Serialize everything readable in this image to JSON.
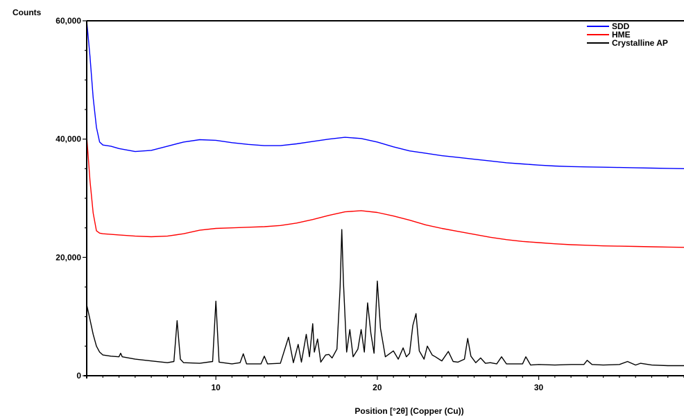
{
  "chart_data": {
    "type": "line",
    "title": "",
    "xlabel": "Position [°2θ] (Copper (Cu))",
    "ylabel": "Counts",
    "xlim": [
      2,
      39
    ],
    "ylim": [
      0,
      60000
    ],
    "x_ticks": [
      10,
      20,
      30
    ],
    "x_tick_labels": [
      "10",
      "20",
      "30"
    ],
    "y_ticks": [
      0,
      20000,
      40000,
      60000
    ],
    "y_tick_labels": [
      "0",
      "20,000",
      "40,000",
      "60,000"
    ],
    "grid": false,
    "legend_position": "top-right",
    "series": [
      {
        "name": "SDD",
        "color": "#0000ff",
        "x": [
          2.0,
          2.2,
          2.4,
          2.6,
          2.8,
          3.0,
          3.5,
          4.0,
          5.0,
          6.0,
          7.0,
          8.0,
          9.0,
          10.0,
          11.0,
          12.0,
          13.0,
          14.0,
          15.0,
          16.0,
          17.0,
          18.0,
          19.0,
          20.0,
          21.0,
          22.0,
          23.0,
          24.0,
          25.0,
          26.0,
          27.0,
          28.0,
          29.0,
          30.0,
          31.0,
          32.0,
          33.0,
          34.0,
          35.0,
          36.0,
          37.0,
          38.0,
          39.0
        ],
        "y": [
          60000,
          54000,
          47000,
          42000,
          39500,
          39000,
          38800,
          38400,
          37900,
          38100,
          38800,
          39500,
          39900,
          39800,
          39400,
          39100,
          38900,
          38900,
          39200,
          39600,
          40000,
          40300,
          40100,
          39500,
          38700,
          38000,
          37600,
          37200,
          36900,
          36600,
          36300,
          36000,
          35800,
          35600,
          35450,
          35350,
          35300,
          35250,
          35200,
          35150,
          35100,
          35050,
          35000
        ]
      },
      {
        "name": "HME",
        "color": "#ff0000",
        "x": [
          2.0,
          2.2,
          2.4,
          2.6,
          2.8,
          3.0,
          3.5,
          4.0,
          5.0,
          6.0,
          7.0,
          8.0,
          9.0,
          10.0,
          11.0,
          12.0,
          13.0,
          14.0,
          15.0,
          16.0,
          17.0,
          18.0,
          19.0,
          20.0,
          21.0,
          22.0,
          23.0,
          24.0,
          25.0,
          26.0,
          27.0,
          28.0,
          29.0,
          30.0,
          31.0,
          32.0,
          33.0,
          34.0,
          35.0,
          36.0,
          37.0,
          38.0,
          39.0
        ],
        "y": [
          40500,
          33000,
          27500,
          24500,
          24100,
          24000,
          23900,
          23800,
          23600,
          23500,
          23600,
          24000,
          24600,
          24900,
          25000,
          25100,
          25200,
          25400,
          25800,
          26400,
          27100,
          27700,
          27900,
          27600,
          27000,
          26300,
          25500,
          24900,
          24400,
          23900,
          23400,
          23000,
          22700,
          22500,
          22300,
          22150,
          22050,
          21950,
          21900,
          21850,
          21800,
          21750,
          21700
        ]
      },
      {
        "name": "Crystalline AP",
        "color": "#000000",
        "x": [
          2.0,
          2.2,
          2.4,
          2.6,
          2.8,
          3.0,
          3.5,
          4.0,
          4.1,
          4.2,
          5.0,
          6.0,
          7.0,
          7.4,
          7.6,
          7.8,
          8.0,
          9.0,
          9.8,
          10.0,
          10.2,
          11.0,
          11.5,
          11.7,
          11.9,
          12.8,
          13.0,
          13.2,
          14.0,
          14.5,
          14.8,
          15.1,
          15.3,
          15.6,
          15.8,
          16.0,
          16.1,
          16.3,
          16.5,
          16.8,
          17.0,
          17.2,
          17.5,
          17.7,
          17.8,
          17.9,
          18.1,
          18.3,
          18.5,
          18.8,
          19.0,
          19.2,
          19.4,
          19.6,
          19.8,
          20.0,
          20.2,
          20.5,
          21.0,
          21.3,
          21.6,
          21.8,
          22.0,
          22.2,
          22.4,
          22.6,
          22.9,
          23.1,
          23.4,
          23.6,
          24.0,
          24.4,
          24.7,
          25.0,
          25.4,
          25.6,
          25.8,
          26.1,
          26.4,
          26.7,
          27.0,
          27.4,
          27.7,
          28.0,
          29.0,
          29.2,
          29.5,
          30.0,
          31.0,
          32.0,
          32.8,
          33.0,
          33.3,
          34.0,
          35.0,
          35.5,
          36.0,
          36.3,
          37.0,
          38.0,
          39.0
        ],
        "y": [
          12000,
          9500,
          7000,
          5000,
          4000,
          3500,
          3300,
          3200,
          3800,
          3200,
          2800,
          2500,
          2200,
          2400,
          9300,
          2800,
          2200,
          2100,
          2400,
          12600,
          2300,
          2000,
          2200,
          3700,
          2000,
          2000,
          3300,
          2000,
          2100,
          6500,
          2200,
          5300,
          2300,
          7000,
          3200,
          8800,
          4000,
          6200,
          2300,
          3500,
          3600,
          3000,
          4500,
          15000,
          24700,
          16000,
          4000,
          7800,
          3200,
          4500,
          7800,
          4000,
          12300,
          7200,
          3800,
          16000,
          8000,
          3200,
          4200,
          2800,
          4700,
          3200,
          3800,
          8500,
          10500,
          4200,
          2800,
          5000,
          3500,
          3200,
          2500,
          4100,
          2400,
          2300,
          2800,
          6300,
          3300,
          2200,
          3000,
          2100,
          2200,
          2000,
          3200,
          2000,
          2000,
          3200,
          1800,
          1900,
          1800,
          1900,
          1900,
          2600,
          1900,
          1800,
          1900,
          2400,
          1800,
          2100,
          1800,
          1700,
          1700
        ]
      }
    ]
  }
}
